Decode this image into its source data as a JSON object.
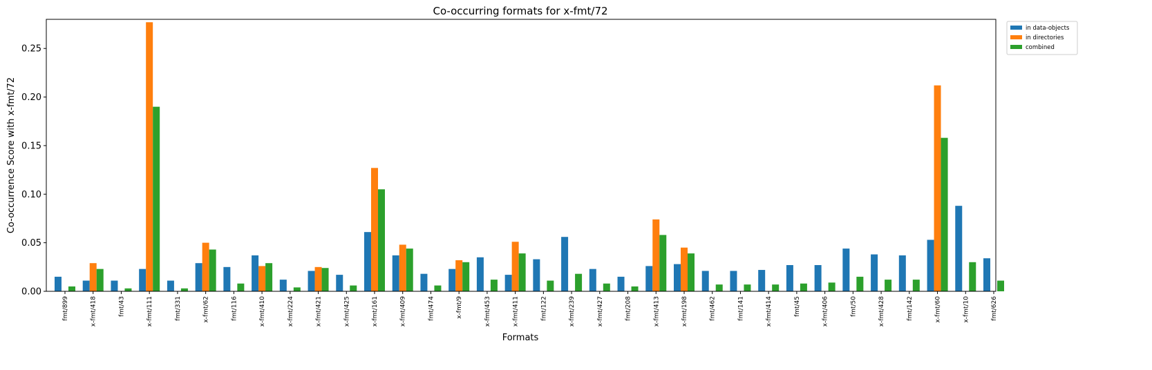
{
  "chart_data": {
    "type": "bar",
    "title": "Co-occurring formats for x-fmt/72",
    "xlabel": "Formats",
    "ylabel": "Co-occurrence Score with x-fmt/72",
    "ylim": [
      0,
      0.28
    ],
    "yticks": [
      "0.00",
      "0.05",
      "0.10",
      "0.15",
      "0.20",
      "0.25"
    ],
    "legend_position": "outside-top-right",
    "grid": false,
    "categories": [
      "fmt/899",
      "x-fmt/418",
      "fmt/43",
      "x-fmt/111",
      "fmt/331",
      "x-fmt/62",
      "fmt/116",
      "x-fmt/410",
      "x-fmt/224",
      "x-fmt/421",
      "x-fmt/425",
      "x-fmt/161",
      "x-fmt/409",
      "fmt/474",
      "x-fmt/9",
      "x-fmt/453",
      "x-fmt/411",
      "fmt/122",
      "x-fmt/239",
      "x-fmt/427",
      "fmt/208",
      "x-fmt/413",
      "x-fmt/198",
      "fmt/462",
      "fmt/141",
      "x-fmt/414",
      "fmt/45",
      "x-fmt/406",
      "fmt/50",
      "x-fmt/428",
      "fmt/142",
      "x-fmt/60",
      "x-fmt/10",
      "fmt/626"
    ],
    "series": [
      {
        "name": "in data-objects",
        "color": "#1f77b4",
        "values": [
          0.015,
          0.011,
          0.011,
          0.023,
          0.011,
          0.029,
          0.025,
          0.037,
          0.012,
          0.021,
          0.017,
          0.061,
          0.037,
          0.018,
          0.023,
          0.035,
          0.017,
          0.033,
          0.056,
          0.023,
          0.015,
          0.026,
          0.028,
          0.021,
          0.021,
          0.022,
          0.027,
          0.027,
          0.044,
          0.038,
          0.037,
          0.053,
          0.088,
          0.034
        ]
      },
      {
        "name": "in directories",
        "color": "#ff7f0e",
        "values": [
          0,
          0.029,
          0,
          0.277,
          0,
          0.05,
          0,
          0.026,
          0,
          0.025,
          0,
          0.127,
          0.048,
          0,
          0.032,
          0,
          0.051,
          0,
          0,
          0,
          0,
          0.074,
          0.045,
          0,
          0,
          0,
          0,
          0,
          0,
          0,
          0,
          0.212,
          0,
          0
        ]
      },
      {
        "name": "combined",
        "color": "#2ca02c",
        "values": [
          0.005,
          0.023,
          0.003,
          0.19,
          0.003,
          0.043,
          0.008,
          0.029,
          0.004,
          0.024,
          0.006,
          0.105,
          0.044,
          0.006,
          0.03,
          0.012,
          0.039,
          0.011,
          0.018,
          0.008,
          0.005,
          0.058,
          0.039,
          0.007,
          0.007,
          0.007,
          0.008,
          0.009,
          0.015,
          0.012,
          0.012,
          0.158,
          0.03,
          0.011
        ]
      }
    ]
  }
}
